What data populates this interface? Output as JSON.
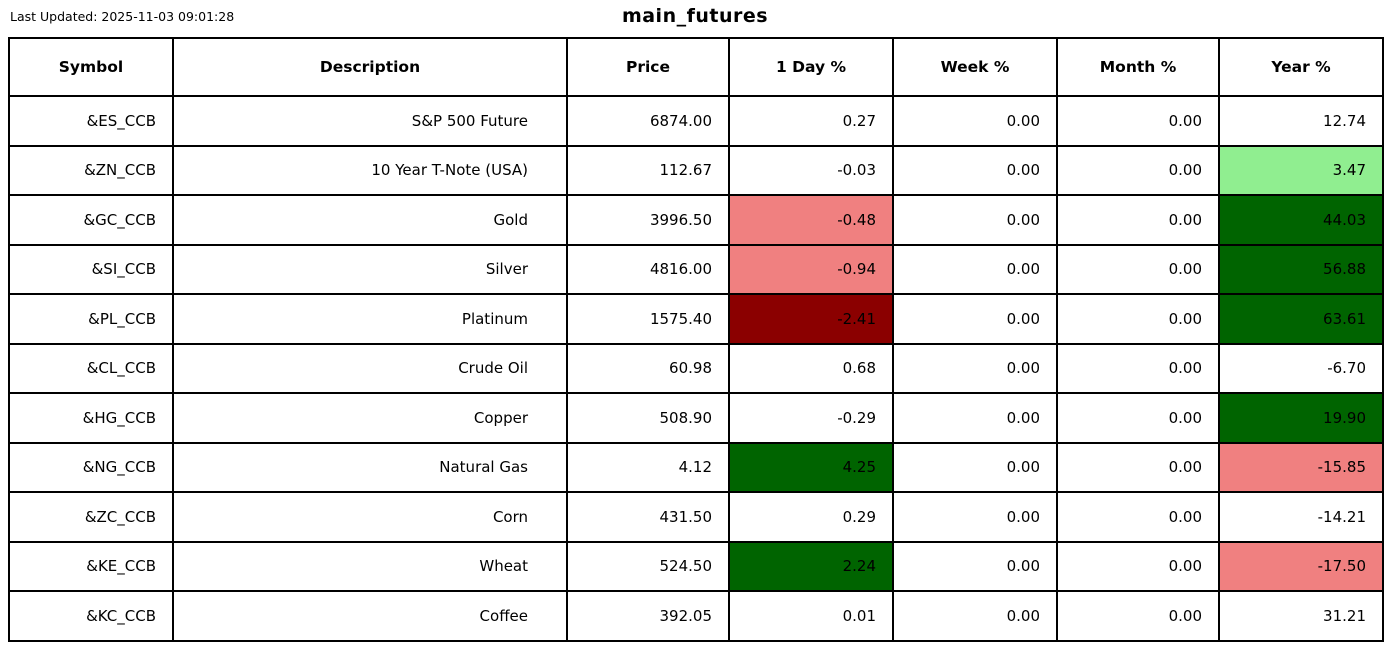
{
  "chart_data": {
    "type": "table",
    "title": "main_futures",
    "last_updated": "Last Updated: 2025-11-03 09:01:28",
    "columns": [
      "Symbol",
      "Description",
      "Price",
      "1 Day %",
      "Week %",
      "Month %",
      "Year %"
    ],
    "rows": [
      {
        "symbol": "&ES_CCB",
        "description": "S&P 500 Future",
        "price": "6874.00",
        "day": "0.27",
        "week": "0.00",
        "month": "0.00",
        "year": "12.74",
        "day_bg": "",
        "year_bg": ""
      },
      {
        "symbol": "&ZN_CCB",
        "description": "10 Year T-Note (USA)",
        "price": "112.67",
        "day": "-0.03",
        "week": "0.00",
        "month": "0.00",
        "year": "3.47",
        "day_bg": "",
        "year_bg": "mild_gain"
      },
      {
        "symbol": "&GC_CCB",
        "description": "Gold",
        "price": "3996.50",
        "day": "-0.48",
        "week": "0.00",
        "month": "0.00",
        "year": "44.03",
        "day_bg": "mild_loss",
        "year_bg": "strong_gain"
      },
      {
        "symbol": "&SI_CCB",
        "description": "Silver",
        "price": "4816.00",
        "day": "-0.94",
        "week": "0.00",
        "month": "0.00",
        "year": "56.88",
        "day_bg": "mild_loss",
        "year_bg": "strong_gain"
      },
      {
        "symbol": "&PL_CCB",
        "description": "Platinum",
        "price": "1575.40",
        "day": "-2.41",
        "week": "0.00",
        "month": "0.00",
        "year": "63.61",
        "day_bg": "strong_loss",
        "year_bg": "strong_gain"
      },
      {
        "symbol": "&CL_CCB",
        "description": "Crude Oil",
        "price": "60.98",
        "day": "0.68",
        "week": "0.00",
        "month": "0.00",
        "year": "-6.70",
        "day_bg": "",
        "year_bg": ""
      },
      {
        "symbol": "&HG_CCB",
        "description": "Copper",
        "price": "508.90",
        "day": "-0.29",
        "week": "0.00",
        "month": "0.00",
        "year": "19.90",
        "day_bg": "",
        "year_bg": "strong_gain"
      },
      {
        "symbol": "&NG_CCB",
        "description": "Natural Gas",
        "price": "4.12",
        "day": "4.25",
        "week": "0.00",
        "month": "0.00",
        "year": "-15.85",
        "day_bg": "strong_gain",
        "year_bg": "mild_loss"
      },
      {
        "symbol": "&ZC_CCB",
        "description": "Corn",
        "price": "431.50",
        "day": "0.29",
        "week": "0.00",
        "month": "0.00",
        "year": "-14.21",
        "day_bg": "",
        "year_bg": ""
      },
      {
        "symbol": "&KE_CCB",
        "description": "Wheat",
        "price": "524.50",
        "day": "2.24",
        "week": "0.00",
        "month": "0.00",
        "year": "-17.50",
        "day_bg": "strong_gain",
        "year_bg": "mild_loss"
      },
      {
        "symbol": "&KC_CCB",
        "description": "Coffee",
        "price": "392.05",
        "day": "0.01",
        "week": "0.00",
        "month": "0.00",
        "year": "31.21",
        "day_bg": "",
        "year_bg": ""
      }
    ]
  },
  "colors": {
    "strong_gain": "#006400",
    "mild_gain": "#90EE90",
    "mild_loss": "#F08080",
    "strong_loss": "#8B0000",
    "border": "#000000"
  }
}
